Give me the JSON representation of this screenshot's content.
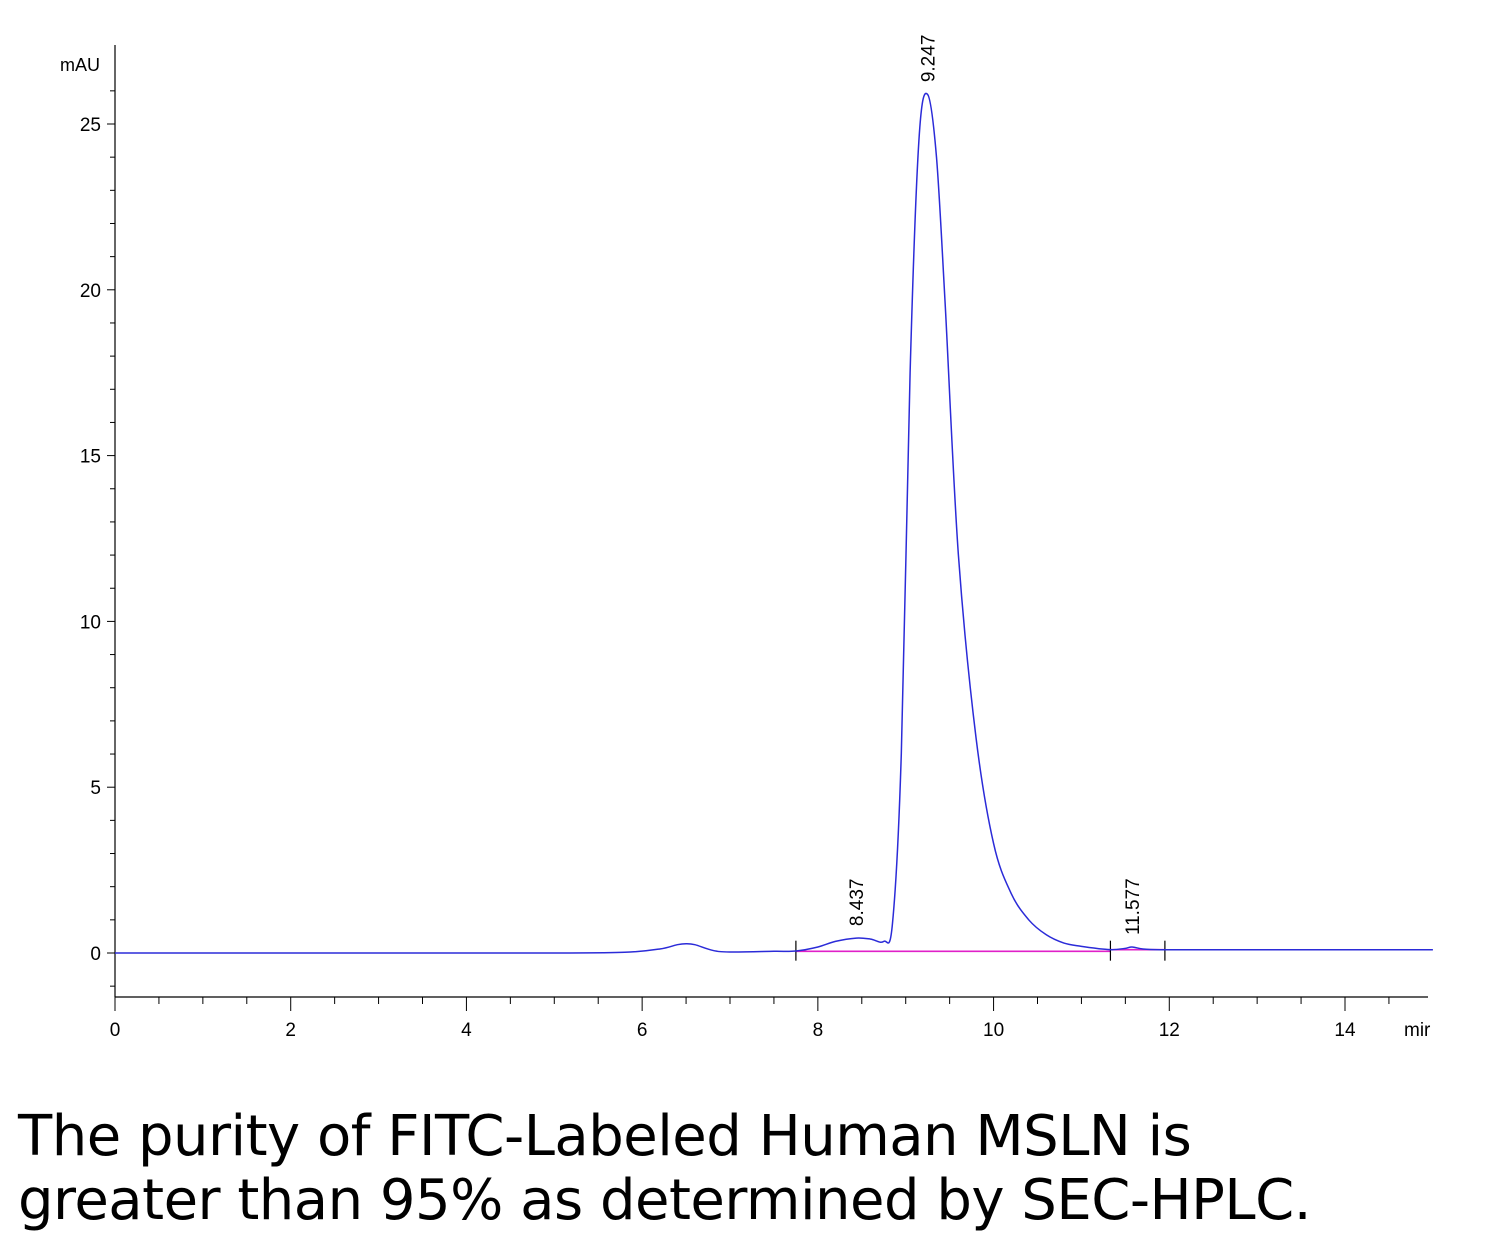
{
  "chart_data": {
    "type": "line",
    "title": "",
    "ylabel": "mAU",
    "xlabel": "mir",
    "xlim": [
      0,
      15
    ],
    "ylim": [
      -1.3,
      27
    ],
    "x_ticks": [
      0,
      2,
      4,
      6,
      8,
      10,
      12,
      14
    ],
    "y_ticks": [
      0,
      5,
      10,
      15,
      20,
      25
    ],
    "grid": false,
    "colors": {
      "trace": "#2b2bd8",
      "baseline": "#e020c8",
      "axis": "#000000"
    },
    "series": [
      {
        "x": [
          0,
          1,
          2,
          3,
          4,
          5,
          5.8,
          6.2,
          6.4,
          6.5,
          6.6,
          6.8,
          7.0,
          7.5,
          7.75,
          8.0,
          8.2,
          8.437,
          8.6,
          8.75,
          8.85,
          8.95,
          9.05,
          9.15,
          9.247,
          9.35,
          9.45,
          9.6,
          9.8,
          10.0,
          10.2,
          10.4,
          10.6,
          10.8,
          11.0,
          11.2,
          11.35,
          11.5,
          11.577,
          11.7,
          11.9,
          12.5,
          13,
          14,
          15
        ],
        "y": [
          0.0,
          0.0,
          0.0,
          0.0,
          0.0,
          0.0,
          0.02,
          0.12,
          0.25,
          0.28,
          0.25,
          0.08,
          0.03,
          0.05,
          0.06,
          0.18,
          0.35,
          0.45,
          0.42,
          0.35,
          0.9,
          6.0,
          17.5,
          24.5,
          25.9,
          24.0,
          19.5,
          12.0,
          6.5,
          3.3,
          1.8,
          1.0,
          0.55,
          0.3,
          0.2,
          0.13,
          0.1,
          0.14,
          0.18,
          0.12,
          0.1,
          0.1,
          0.1,
          0.1,
          0.1
        ]
      }
    ],
    "baselines": [
      {
        "x": [
          7.75,
          11.33
        ],
        "y": [
          0.05,
          0.05
        ]
      },
      {
        "x": [
          11.33,
          11.95
        ],
        "y": [
          0.1,
          0.1
        ]
      }
    ],
    "baseline_markers": [
      7.75,
      11.33,
      11.95
    ],
    "peak_labels": [
      {
        "label": "8.437",
        "x": 8.437,
        "y": 0.45
      },
      {
        "label": "9.247",
        "x": 9.247,
        "y": 25.9
      },
      {
        "label": "11.577",
        "x": 11.577,
        "y": 0.18
      }
    ]
  },
  "caption": {
    "line1": "The purity of FITC-Labeled Human MSLN is",
    "line2": "greater than 95% as determined by SEC-HPLC."
  }
}
